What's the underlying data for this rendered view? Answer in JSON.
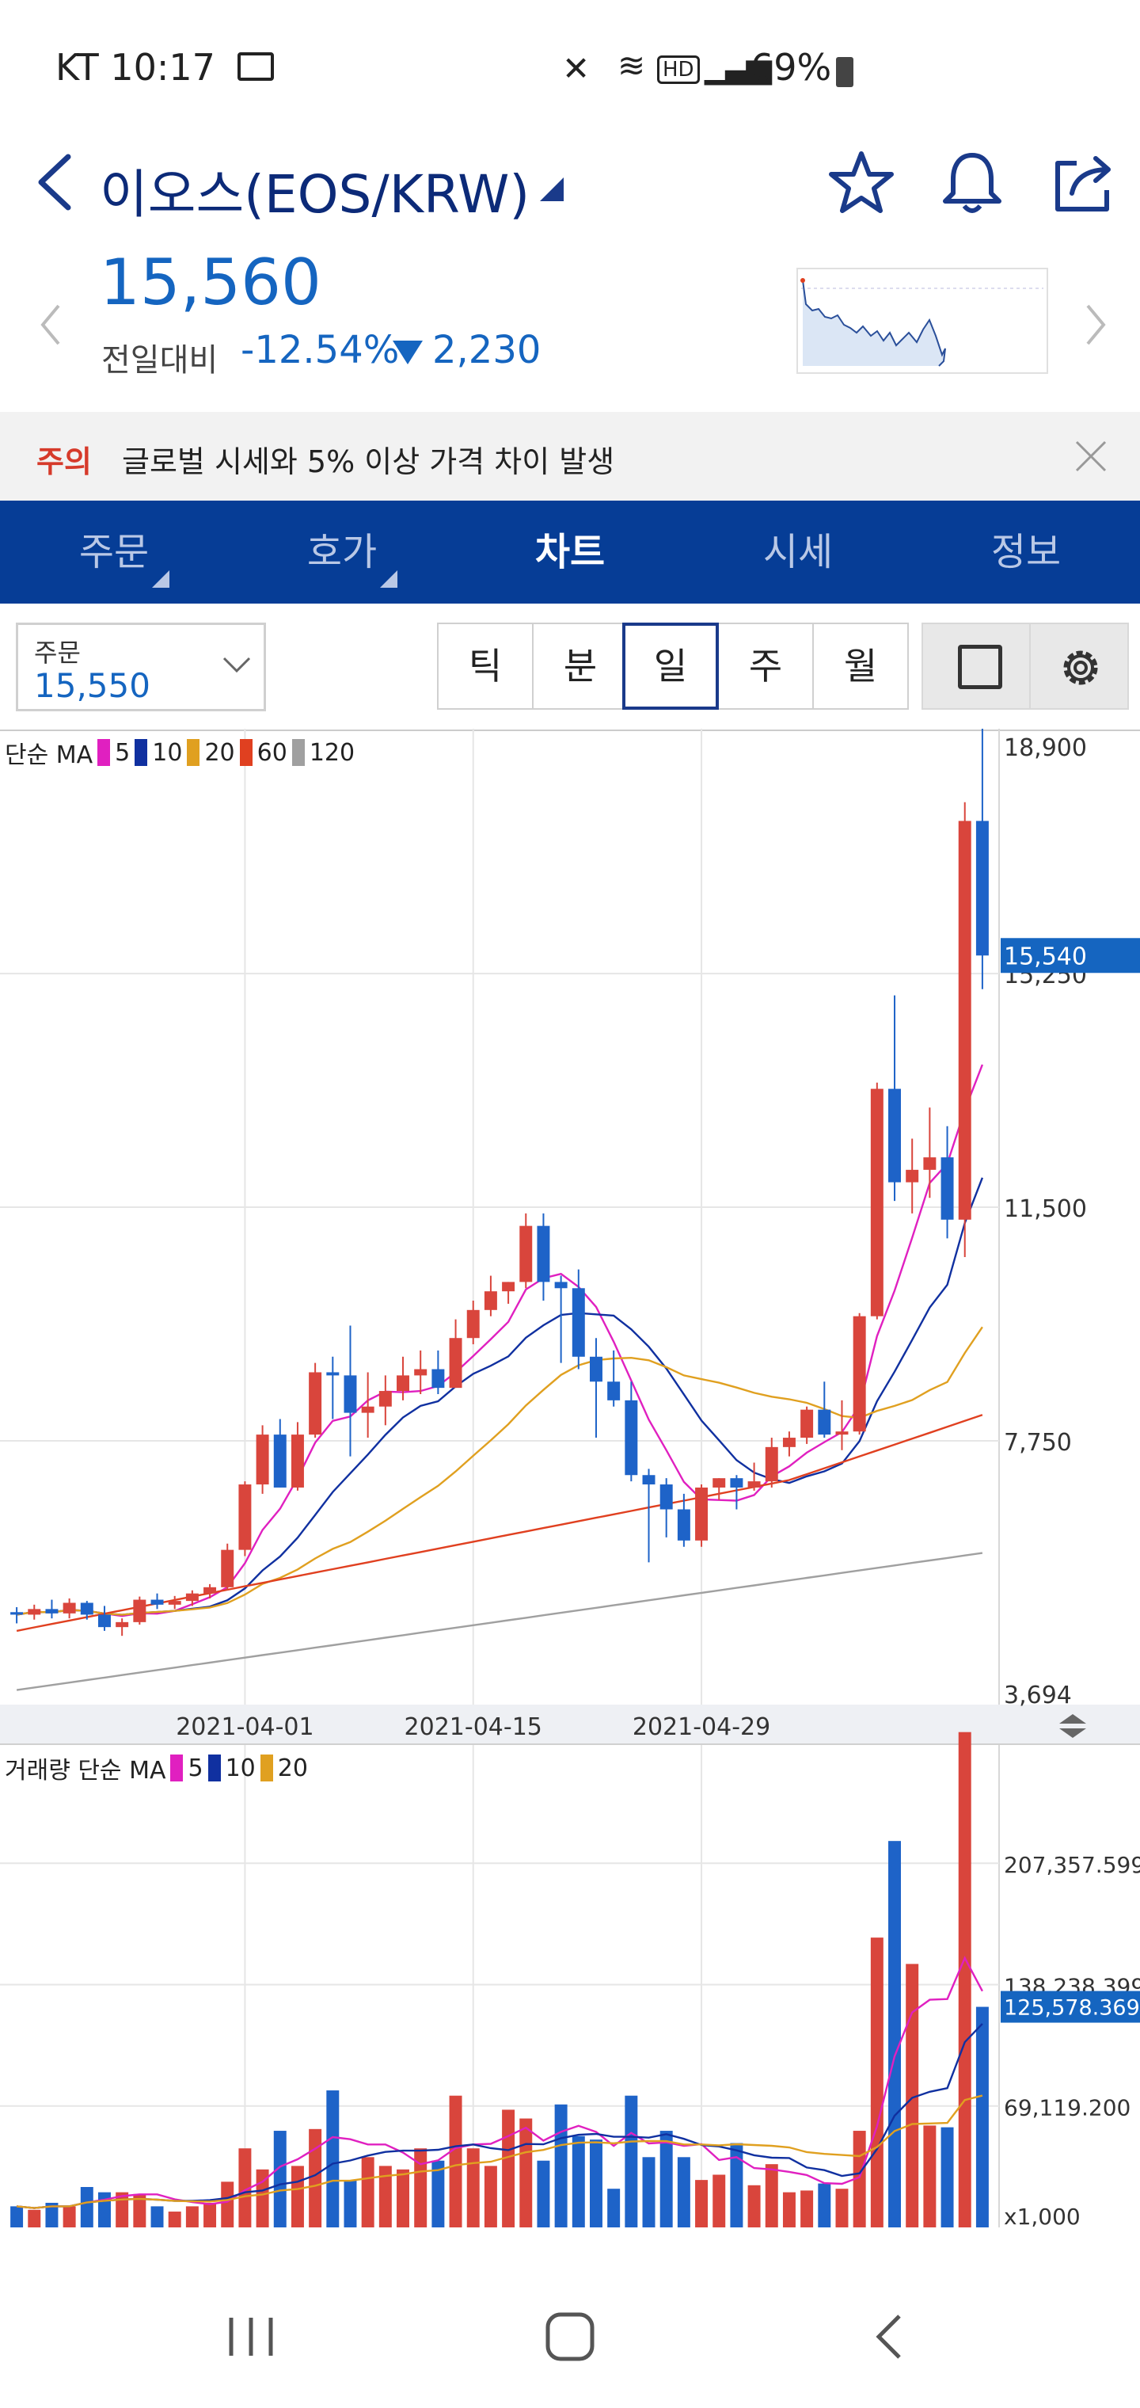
{
  "status_bar": {
    "carrier_time": "KT 10:17",
    "battery": "69%"
  },
  "header": {
    "title": "이오스(EOS/KRW)",
    "price": "15,560",
    "change_label": "전일대비",
    "change_pct": "-12.54%",
    "change_amt": "2,230",
    "accent_color": "#1565c0"
  },
  "notice": {
    "tag": "주의",
    "text": "글로벌 시세와 5% 이상 가격 차이 발생"
  },
  "tabs": [
    {
      "label": "주문"
    },
    {
      "label": "호가"
    },
    {
      "label": "차트"
    },
    {
      "label": "시세"
    },
    {
      "label": "정보"
    }
  ],
  "order_box": {
    "label": "주문",
    "value": "15,550"
  },
  "periods": [
    {
      "label": "틱"
    },
    {
      "label": "분"
    },
    {
      "label": "일"
    },
    {
      "label": "주"
    },
    {
      "label": "월"
    }
  ],
  "chart_data": [
    {
      "type": "candlestick",
      "legend_prefix": "단순 MA",
      "legend": [
        {
          "name": "5",
          "color": "#e020c0"
        },
        {
          "name": "10",
          "color": "#1030a0"
        },
        {
          "name": "20",
          "color": "#e0a020"
        },
        {
          "name": "60",
          "color": "#e04020"
        },
        {
          "name": "120",
          "color": "#a0a0a0"
        }
      ],
      "y_ticks": [
        "18,900",
        "15,250",
        "11,500",
        "7,750",
        "3,694"
      ],
      "y_tick_values": [
        18900,
        15250,
        11500,
        7750,
        3694
      ],
      "current_price_label": "15,540",
      "current_price": 15540,
      "x_ticks": [
        "2021-04-01",
        "2021-04-15",
        "2021-04-29"
      ],
      "ylim": [
        3694,
        18900
      ],
      "candles": [
        [
          5000,
          5080,
          4820,
          4960
        ],
        [
          4960,
          5120,
          4880,
          5050
        ],
        [
          5050,
          5200,
          4900,
          4980
        ],
        [
          4980,
          5220,
          4900,
          5150
        ],
        [
          5150,
          5180,
          4880,
          4960
        ],
        [
          4960,
          5100,
          4700,
          4760
        ],
        [
          4760,
          4900,
          4620,
          4840
        ],
        [
          4840,
          5250,
          4800,
          5200
        ],
        [
          5200,
          5300,
          5050,
          5120
        ],
        [
          5120,
          5260,
          5050,
          5180
        ],
        [
          5180,
          5350,
          5100,
          5300
        ],
        [
          5300,
          5450,
          5220,
          5400
        ],
        [
          5400,
          6100,
          5350,
          6000
        ],
        [
          6000,
          7100,
          5900,
          7050
        ],
        [
          7050,
          8000,
          6900,
          7850
        ],
        [
          7850,
          8100,
          7000,
          7000
        ],
        [
          7000,
          8050,
          6950,
          7850
        ],
        [
          7850,
          9000,
          7800,
          8850
        ],
        [
          8850,
          9100,
          8100,
          8800
        ],
        [
          8800,
          9600,
          7500,
          8200
        ],
        [
          8200,
          8850,
          7800,
          8300
        ],
        [
          8300,
          8800,
          8000,
          8550
        ],
        [
          8550,
          9100,
          8400,
          8800
        ],
        [
          8800,
          9200,
          8500,
          8900
        ],
        [
          8900,
          9200,
          8500,
          8600
        ],
        [
          8600,
          9700,
          8600,
          9400
        ],
        [
          9400,
          10000,
          9300,
          9850
        ],
        [
          9850,
          10400,
          9750,
          10150
        ],
        [
          10150,
          10300,
          9950,
          10300
        ],
        [
          10300,
          11400,
          10200,
          11200
        ],
        [
          11200,
          11400,
          10000,
          10300
        ],
        [
          10300,
          10400,
          9000,
          10200
        ],
        [
          10200,
          10500,
          8900,
          9100
        ],
        [
          9100,
          9400,
          7800,
          8700
        ],
        [
          8700,
          9200,
          8300,
          8400
        ],
        [
          8400,
          8700,
          7100,
          7200
        ],
        [
          7200,
          7300,
          5800,
          7050
        ],
        [
          7050,
          7150,
          6200,
          6650
        ],
        [
          6650,
          6900,
          6050,
          6150
        ],
        [
          6150,
          7050,
          6050,
          7000
        ],
        [
          7000,
          7150,
          6800,
          7150
        ],
        [
          7150,
          7200,
          6650,
          7000
        ],
        [
          7000,
          7400,
          6950,
          7100
        ],
        [
          7100,
          7800,
          7000,
          7650
        ],
        [
          7650,
          7900,
          7500,
          7800
        ],
        [
          7800,
          8300,
          7700,
          8250
        ],
        [
          8250,
          8700,
          7800,
          7850
        ],
        [
          7850,
          8400,
          7600,
          7900
        ],
        [
          7900,
          9800,
          7850,
          9750
        ],
        [
          9750,
          13500,
          9700,
          13400
        ],
        [
          13400,
          14900,
          11600,
          11900
        ],
        [
          11900,
          12600,
          11400,
          12100
        ],
        [
          12100,
          13100,
          11650,
          12300
        ],
        [
          12300,
          12800,
          11000,
          11300
        ],
        [
          11300,
          18000,
          10700,
          17700
        ],
        [
          17700,
          19300,
          15000,
          15540
        ]
      ]
    },
    {
      "type": "bar",
      "legend_prefix": "거래량 단순 MA",
      "legend": [
        {
          "name": "5",
          "color": "#e020c0"
        },
        {
          "name": "10",
          "color": "#1030a0"
        },
        {
          "name": "20",
          "color": "#e0a020"
        }
      ],
      "y_ticks": [
        "207,357.599",
        "138,238.399",
        "69,119.200",
        "x1,000"
      ],
      "current_volume_label": "125,578.369",
      "current_volume": 125578.369,
      "ylim": [
        0,
        276000
      ],
      "volumes": [
        12000,
        10000,
        14000,
        12000,
        23000,
        20000,
        20000,
        19000,
        12000,
        9000,
        12000,
        14000,
        26000,
        45000,
        33000,
        55000,
        35000,
        56000,
        78000,
        27000,
        40000,
        35000,
        33000,
        45000,
        38000,
        75000,
        45000,
        35000,
        67000,
        62000,
        38000,
        70000,
        52000,
        50000,
        22000,
        75000,
        40000,
        55000,
        40000,
        27000,
        30000,
        48000,
        24000,
        36000,
        20000,
        21000,
        25000,
        22000,
        55000,
        165000,
        220000,
        150000,
        58000,
        57000,
        282000,
        125578
      ]
    }
  ]
}
